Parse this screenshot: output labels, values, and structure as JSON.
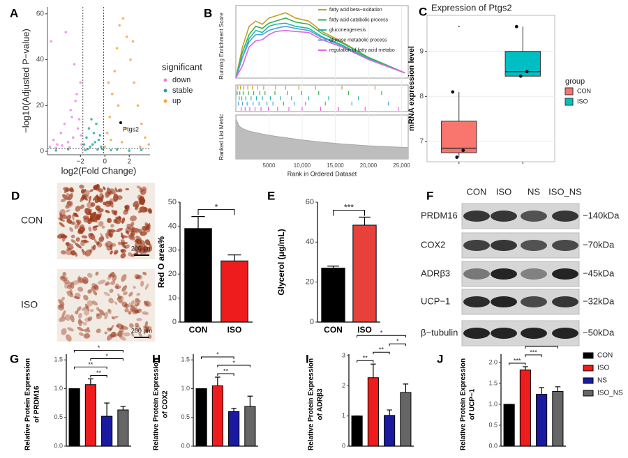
{
  "chart_data": [
    {
      "type": "scatter",
      "panel": "A",
      "xlabel": "log2(Fold Change)",
      "ylabel": "−log10(Adjusted P−value)",
      "xlim": [
        -4.7,
        3.7
      ],
      "ylim": [
        -1.5,
        63
      ],
      "xticks": [
        {
          "value": -2,
          "label": "−2"
        },
        0,
        2
      ],
      "yticks": [
        0,
        20,
        40,
        60
      ],
      "vlines": [
        -1.8,
        -0.1
      ],
      "hline": 1.3,
      "legend": "right",
      "legend_title": "significant",
      "annotation": {
        "label": "Ptgs2",
        "x": 1.3,
        "y": 12.5
      },
      "series": [
        {
          "name": "down",
          "color": "#ea82e8",
          "x": [
            -4.5,
            -4.2,
            -3.9,
            -3.6,
            -3.3,
            -3.0,
            -2.8,
            -2.6,
            -2.4,
            -2.2,
            -2.0,
            -1.9,
            -3.2,
            -2.7,
            -2.1,
            -4.0,
            -2.5,
            -1.95,
            -3.5,
            -2.3,
            -4.4,
            -2.9
          ],
          "values": [
            2,
            5,
            3,
            8,
            12,
            4,
            18,
            6,
            22,
            10,
            30,
            3,
            52,
            15,
            14,
            1.5,
            38,
            7,
            2.5,
            25,
            48,
            1.8
          ]
        },
        {
          "name": "stable",
          "color": "#26a69a",
          "x": [
            -1.7,
            -1.5,
            -1.3,
            -1.1,
            -0.9,
            -0.7,
            -0.5,
            -0.3,
            -0.2,
            -1.6,
            -1.2,
            -0.8,
            -0.4,
            -1.4,
            -1.0,
            -0.6,
            0.5,
            1.0,
            2.0,
            3.0,
            -3.0,
            -4.0
          ],
          "values": [
            3,
            6,
            10,
            14,
            8,
            12,
            5,
            2,
            1,
            0.5,
            2,
            4,
            7,
            1,
            3,
            0.8,
            0.5,
            0.8,
            0.3,
            0.6,
            0.9,
            0.4
          ]
        },
        {
          "name": "up",
          "color": "#f5a33c",
          "x": [
            0.0,
            0.2,
            0.4,
            0.6,
            0.8,
            1.0,
            1.2,
            1.5,
            1.8,
            2.1,
            2.4,
            2.7,
            3.0,
            3.3,
            3.6,
            0.5,
            1.1,
            1.7,
            2.3,
            2.9,
            0.3,
            1.4
          ],
          "values": [
            2,
            8,
            15,
            25,
            35,
            45,
            55,
            58,
            50,
            40,
            30,
            20,
            12,
            6,
            3,
            5,
            20,
            10,
            48,
            2,
            30,
            4
          ]
        }
      ]
    },
    {
      "type": "line",
      "panel": "B",
      "ylabel": "Running Enrichment Score",
      "ylabel2": "Ranked List Metric",
      "xlabel": "Rank in Ordered Dataset",
      "xlim": [
        0,
        26000
      ],
      "ylim": [
        0,
        0.7
      ],
      "metric_ylim": [
        0,
        12
      ],
      "xticks": [
        5000,
        {
          "value": 10000,
          "label": "10,000"
        },
        {
          "value": 15000,
          "label": "15,000"
        },
        {
          "value": 20000,
          "label": "20,000"
        },
        {
          "value": 25000,
          "label": "25,000"
        }
      ],
      "x": [
        0,
        1000,
        2000,
        3000,
        4000,
        5000,
        6000,
        7500,
        9000,
        11000,
        13000,
        16000,
        20000,
        25500
      ],
      "series": [
        {
          "name": "fatty acid beta−oxidation",
          "color": "#c2a12b",
          "values": [
            0,
            0.3,
            0.5,
            0.55,
            0.52,
            0.58,
            0.6,
            0.63,
            0.58,
            0.55,
            0.45,
            0.35,
            0.2,
            0.05
          ],
          "hits": [
            300,
            700,
            1200,
            1800,
            2500,
            3300,
            4200,
            6000,
            7500,
            9500,
            12000,
            16000,
            21000
          ]
        },
        {
          "name": "fatty acid catabolic process",
          "color": "#35b24a",
          "values": [
            0,
            0.25,
            0.42,
            0.5,
            0.48,
            0.53,
            0.55,
            0.58,
            0.54,
            0.52,
            0.43,
            0.34,
            0.2,
            0.05
          ],
          "hits": [
            200,
            600,
            1100,
            1900,
            2700,
            3600,
            4400,
            5900,
            7800,
            9900,
            12500,
            17000,
            22000
          ]
        },
        {
          "name": "gluconeogenesis",
          "color": "#1fb5ac",
          "values": [
            0,
            0.2,
            0.38,
            0.46,
            0.44,
            0.5,
            0.52,
            0.53,
            0.5,
            0.48,
            0.4,
            0.32,
            0.19,
            0.05
          ],
          "hits": [
            500,
            900,
            1500,
            2300,
            3100,
            4000,
            5200,
            6700,
            8400,
            11000,
            14000,
            18500
          ]
        },
        {
          "name": "glucose metabolic process",
          "color": "#4aa3df",
          "values": [
            0,
            0.2,
            0.35,
            0.42,
            0.42,
            0.46,
            0.48,
            0.5,
            0.48,
            0.46,
            0.39,
            0.31,
            0.18,
            0.05
          ],
          "hits": [
            400,
            1000,
            1700,
            2600,
            3500,
            4700,
            5600,
            7200,
            8800,
            10500,
            13500,
            17500,
            23000
          ]
        },
        {
          "name": "regulation of fatty acid metabo",
          "color": "#e066d8",
          "values": [
            0,
            0.12,
            0.3,
            0.36,
            0.37,
            0.42,
            0.45,
            0.46,
            0.45,
            0.44,
            0.37,
            0.3,
            0.18,
            0.05
          ],
          "hits": [
            800,
            1400,
            2100,
            2900,
            3800,
            4900,
            6300,
            8000,
            10000,
            12800,
            15500,
            19500,
            24500
          ]
        }
      ],
      "metric_x": [
        0,
        500,
        1000,
        2000,
        4000,
        6000,
        8000,
        10000,
        13000,
        16000,
        20000,
        25000,
        26000
      ],
      "metric": [
        11,
        9,
        8.3,
        7.6,
        6.8,
        6.2,
        5.7,
        5.2,
        4.6,
        4.1,
        3.6,
        3.2,
        3.1
      ]
    },
    {
      "type": "box",
      "panel": "C",
      "title": "Expression of Ptgs2",
      "ylabel": "mRNA expression level",
      "categories": [
        "CON",
        "ISO"
      ],
      "colors": [
        "#f8766d",
        "#00bfc4"
      ],
      "legend": "right",
      "legend_title": "group",
      "ylim": [
        6.55,
        9.8
      ],
      "yticks": [
        7,
        8,
        9
      ],
      "grid": true,
      "boxes": [
        {
          "min": 6.65,
          "q1": 6.75,
          "median": 6.85,
          "q3": 7.45,
          "max": 8.1
        },
        {
          "min": 8.45,
          "q1": 8.45,
          "median": 8.55,
          "q3": 9.0,
          "max": 9.55
        }
      ],
      "points": [
        [
          8.1,
          6.8,
          6.65
        ],
        [
          9.55,
          8.55,
          8.45
        ]
      ],
      "outliers": [
        [
          9.55
        ],
        []
      ]
    },
    {
      "type": "bar",
      "ylabel": "Red O area%",
      "categories": [
        "CON",
        "ISO"
      ],
      "values": [
        39,
        25.5
      ],
      "errors": [
        5,
        2.5
      ],
      "colors": [
        "#000000",
        "#ee1c1c"
      ],
      "ylim": [
        0,
        50
      ],
      "yticks": [
        0,
        10,
        20,
        30,
        40,
        50
      ],
      "brackets": [
        {
          "from": 0,
          "to": 1,
          "label": "*"
        }
      ]
    },
    {
      "type": "bar",
      "panel": "E",
      "ylabel": "Glycerol (μg/mL)",
      "categories": [
        "CON",
        "ISO"
      ],
      "values": [
        27,
        48.5
      ],
      "errors": [
        1,
        4
      ],
      "colors": [
        "#000000",
        "#e8413c"
      ],
      "ylim": [
        0,
        60
      ],
      "yticks": [
        0,
        20,
        40,
        60
      ],
      "brackets": [
        {
          "from": 0,
          "to": 1,
          "label": "***"
        }
      ]
    },
    {
      "type": "bar",
      "panel": "G",
      "ylabel": [
        "Relative Protein Expression",
        "of PRDM16"
      ],
      "values": [
        1.0,
        1.07,
        0.52,
        0.63
      ],
      "errors": [
        0,
        0.1,
        0.23,
        0.06
      ],
      "colors": [
        "#000000",
        "#ee1c1c",
        "#1a1aa0",
        "#666666"
      ],
      "ylim": [
        0,
        1.6
      ],
      "yticks": [
        {
          "value": 0,
          "label": "0.0"
        },
        0.5,
        {
          "value": 1,
          "label": "1.0"
        },
        1.5
      ],
      "brackets": [
        {
          "from": 0,
          "to": 3,
          "label": "*"
        },
        {
          "from": 0,
          "to": 2,
          "label": "**"
        },
        {
          "from": 1,
          "to": 2,
          "label": "**"
        },
        {
          "from": 1,
          "to": 3,
          "label": "*"
        }
      ]
    },
    {
      "type": "bar",
      "panel": "H",
      "ylabel": [
        "Relative Protein Expression",
        "of COX2"
      ],
      "values": [
        1.0,
        1.05,
        0.6,
        0.69
      ],
      "errors": [
        0,
        0.15,
        0.06,
        0.18
      ],
      "colors": [
        "#000000",
        "#ee1c1c",
        "#1a1aa0",
        "#666666"
      ],
      "ylim": [
        0,
        1.6
      ],
      "yticks": [
        {
          "value": 0,
          "label": "0.0"
        },
        0.5,
        {
          "value": 1,
          "label": "1.0"
        },
        1.5
      ],
      "brackets": [
        {
          "from": 1,
          "to": 3,
          "label": "*"
        },
        {
          "from": 0,
          "to": 2,
          "label": "*"
        },
        {
          "from": 1,
          "to": 2,
          "label": "**"
        }
      ]
    },
    {
      "type": "bar",
      "panel": "I",
      "ylabel": [
        "Relative Protein Expression",
        "of ADRβ3"
      ],
      "values": [
        1.0,
        2.27,
        1.02,
        1.78
      ],
      "errors": [
        0,
        0.45,
        0.18,
        0.28
      ],
      "colors": [
        "#000000",
        "#ee1c1c",
        "#1a1aa0",
        "#666666"
      ],
      "ylim": [
        0,
        3.05
      ],
      "yticks": [
        0,
        1,
        2,
        3
      ],
      "brackets": [
        {
          "from": 0,
          "to": 3,
          "label": "*"
        },
        {
          "from": 0,
          "to": 1,
          "label": "**"
        },
        {
          "from": 1,
          "to": 2,
          "label": "**"
        },
        {
          "from": 2,
          "to": 3,
          "label": "*"
        }
      ]
    },
    {
      "type": "bar",
      "panel": "J",
      "ylabel": [
        "Relative Protein Expression",
        "of UCP−1"
      ],
      "values": [
        1.0,
        1.82,
        1.24,
        1.31
      ],
      "errors": [
        0,
        0.08,
        0.16,
        0.11
      ],
      "categories": [
        "CON",
        "ISO",
        "NS",
        "ISO_NS"
      ],
      "legend": "right",
      "colors": [
        "#000000",
        "#ee1c1c",
        "#1a1aa0",
        "#666666"
      ],
      "ylim": [
        0,
        2.2
      ],
      "yticks": [
        {
          "value": 0,
          "label": "0.0"
        },
        0.5,
        {
          "value": 1,
          "label": "1.0"
        },
        1.5,
        {
          "value": 2,
          "label": "2.0"
        }
      ],
      "brackets": [
        {
          "from": 0,
          "to": 1,
          "label": "***"
        },
        {
          "from": 1,
          "to": 2,
          "label": "***"
        },
        {
          "from": 1,
          "to": 3,
          "label": "**"
        }
      ]
    }
  ],
  "micrographs": {
    "panel": "D",
    "rows": [
      "CON",
      "ISO"
    ],
    "scale_bar": "200 μm"
  },
  "western_blot": {
    "panel": "F",
    "lanes": [
      "CON",
      "ISO",
      "NS",
      "ISO_NS"
    ],
    "rows": [
      {
        "protein": "PRDM16",
        "size": "−140kDa"
      },
      {
        "protein": "COX2",
        "size": "−70kDa"
      },
      {
        "protein": "ADRβ3",
        "size": "−45kDa"
      },
      {
        "protein": "UCP−1",
        "size": "−32kDa"
      },
      {
        "protein": "β−tubulin",
        "size": "−50kDa"
      }
    ]
  }
}
